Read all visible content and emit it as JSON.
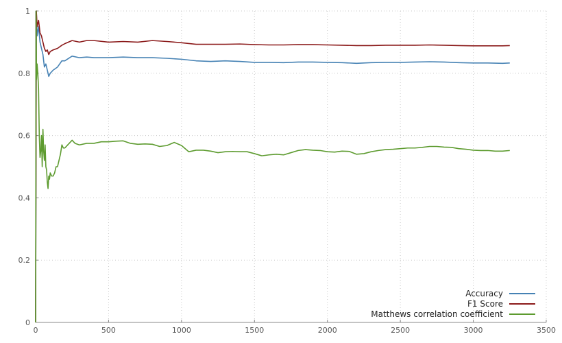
{
  "chart_data": {
    "type": "line",
    "title": "",
    "xlabel": "",
    "ylabel": "",
    "xlim": [
      0,
      3500
    ],
    "ylim": [
      0,
      1
    ],
    "x_ticks": [
      0,
      500,
      1000,
      1500,
      2000,
      2500,
      3000,
      3500
    ],
    "y_ticks": [
      0,
      0.2,
      0.4,
      0.6,
      0.8,
      1
    ],
    "x_tick_labels": [
      "0",
      "500",
      "1000",
      "1500",
      "2000",
      "2500",
      "3000",
      "3500"
    ],
    "y_tick_labels": [
      "0",
      "0.2",
      "0.4",
      "0.6",
      "0.8",
      "1"
    ],
    "grid": true,
    "legend_position": "bottom-right",
    "series": [
      {
        "name": "Accuracy",
        "color": "#4682b4",
        "x": [
          0,
          5,
          10,
          20,
          30,
          40,
          50,
          60,
          70,
          80,
          90,
          100,
          120,
          150,
          180,
          200,
          250,
          300,
          350,
          400,
          500,
          600,
          700,
          800,
          900,
          1000,
          1100,
          1200,
          1300,
          1400,
          1500,
          1600,
          1700,
          1800,
          1900,
          2000,
          2100,
          2200,
          2300,
          2400,
          2500,
          2600,
          2700,
          2800,
          2900,
          3000,
          3100,
          3200,
          3250
        ],
        "y": [
          0.0,
          1.0,
          0.92,
          0.95,
          0.9,
          0.88,
          0.86,
          0.82,
          0.83,
          0.81,
          0.79,
          0.8,
          0.81,
          0.82,
          0.84,
          0.84,
          0.855,
          0.85,
          0.852,
          0.85,
          0.85,
          0.852,
          0.85,
          0.85,
          0.848,
          0.845,
          0.84,
          0.838,
          0.84,
          0.838,
          0.835,
          0.835,
          0.834,
          0.836,
          0.836,
          0.835,
          0.834,
          0.832,
          0.834,
          0.835,
          0.835,
          0.836,
          0.837,
          0.836,
          0.834,
          0.833,
          0.833,
          0.832,
          0.833
        ]
      },
      {
        "name": "F1 Score",
        "color": "#8b1a1a",
        "x": [
          0,
          5,
          10,
          20,
          30,
          40,
          50,
          60,
          70,
          80,
          90,
          100,
          120,
          150,
          180,
          200,
          250,
          300,
          350,
          400,
          500,
          600,
          700,
          800,
          900,
          1000,
          1100,
          1200,
          1300,
          1400,
          1500,
          1600,
          1700,
          1800,
          1900,
          2000,
          2100,
          2200,
          2300,
          2400,
          2500,
          2600,
          2700,
          2800,
          2900,
          3000,
          3100,
          3200,
          3250
        ],
        "y": [
          0.0,
          1.0,
          0.95,
          0.97,
          0.93,
          0.92,
          0.9,
          0.88,
          0.87,
          0.875,
          0.86,
          0.87,
          0.875,
          0.88,
          0.89,
          0.895,
          0.905,
          0.9,
          0.905,
          0.905,
          0.9,
          0.902,
          0.9,
          0.905,
          0.902,
          0.898,
          0.893,
          0.893,
          0.893,
          0.894,
          0.892,
          0.891,
          0.891,
          0.892,
          0.892,
          0.891,
          0.89,
          0.889,
          0.889,
          0.89,
          0.89,
          0.89,
          0.891,
          0.89,
          0.889,
          0.888,
          0.888,
          0.888,
          0.889
        ]
      },
      {
        "name": "Matthews correlation coefficient",
        "color": "#5d9b2f",
        "x": [
          0,
          3,
          6,
          10,
          15,
          20,
          25,
          30,
          35,
          40,
          45,
          50,
          55,
          60,
          65,
          70,
          75,
          80,
          85,
          90,
          95,
          100,
          110,
          120,
          130,
          140,
          150,
          160,
          170,
          180,
          190,
          200,
          220,
          250,
          270,
          300,
          350,
          400,
          450,
          500,
          550,
          600,
          650,
          700,
          750,
          800,
          850,
          900,
          950,
          1000,
          1050,
          1100,
          1150,
          1200,
          1250,
          1300,
          1350,
          1400,
          1450,
          1500,
          1550,
          1600,
          1650,
          1700,
          1750,
          1800,
          1850,
          1900,
          1950,
          2000,
          2050,
          2100,
          2150,
          2200,
          2250,
          2300,
          2350,
          2400,
          2450,
          2500,
          2550,
          2600,
          2650,
          2700,
          2750,
          2800,
          2850,
          2900,
          2950,
          3000,
          3050,
          3100,
          3150,
          3200,
          3250
        ],
        "y": [
          0.0,
          1.0,
          0.78,
          0.83,
          0.8,
          0.75,
          0.6,
          0.53,
          0.55,
          0.6,
          0.5,
          0.62,
          0.55,
          0.52,
          0.57,
          0.5,
          0.49,
          0.45,
          0.43,
          0.47,
          0.46,
          0.48,
          0.47,
          0.47,
          0.48,
          0.5,
          0.5,
          0.52,
          0.54,
          0.57,
          0.56,
          0.56,
          0.57,
          0.585,
          0.575,
          0.57,
          0.575,
          0.575,
          0.58,
          0.58,
          0.582,
          0.583,
          0.575,
          0.572,
          0.573,
          0.572,
          0.565,
          0.568,
          0.578,
          0.568,
          0.548,
          0.553,
          0.553,
          0.55,
          0.545,
          0.548,
          0.549,
          0.548,
          0.548,
          0.542,
          0.535,
          0.538,
          0.54,
          0.538,
          0.545,
          0.552,
          0.555,
          0.553,
          0.552,
          0.548,
          0.547,
          0.55,
          0.549,
          0.54,
          0.542,
          0.548,
          0.552,
          0.555,
          0.556,
          0.558,
          0.56,
          0.56,
          0.562,
          0.565,
          0.565,
          0.563,
          0.562,
          0.558,
          0.556,
          0.553,
          0.552,
          0.552,
          0.55,
          0.55,
          0.552
        ]
      }
    ]
  }
}
